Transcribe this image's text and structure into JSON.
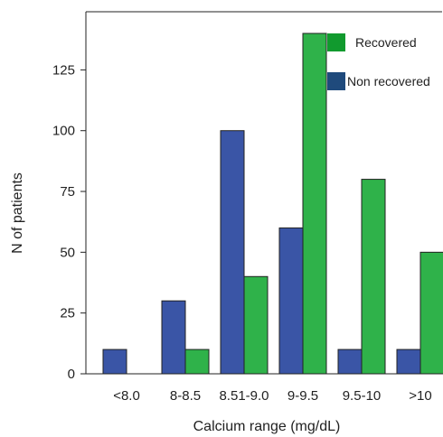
{
  "chart_data": {
    "type": "bar",
    "title": "",
    "xlabel": "Calcium range (mg/dL)",
    "ylabel": "N of patients",
    "categories": [
      "<8.0",
      "8-8.5",
      "8.51-9.0",
      "9-9.5",
      "9.5-10",
      ">10"
    ],
    "series": [
      {
        "name": "Non recovered",
        "values": [
          10,
          30,
          100,
          60,
          10,
          10
        ],
        "color": "#3a55a6"
      },
      {
        "name": "Recovered",
        "values": [
          0,
          10,
          40,
          140,
          80,
          50
        ],
        "color": "#2fb24a"
      }
    ],
    "ylim": [
      0,
      140
    ],
    "yticks": [
      0,
      25,
      50,
      75,
      100,
      125
    ],
    "grid": false,
    "legend_position": "top-right",
    "legend_order": [
      "Recovered",
      "Non recovered"
    ],
    "legend_swatch_colors": {
      "Recovered": "#119a2e",
      "Non recovered": "#1f4a7c"
    }
  }
}
